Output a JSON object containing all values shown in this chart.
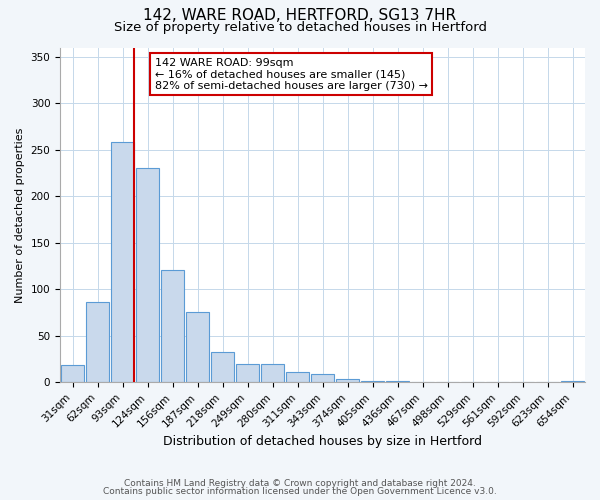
{
  "title1": "142, WARE ROAD, HERTFORD, SG13 7HR",
  "title2": "Size of property relative to detached houses in Hertford",
  "xlabel": "Distribution of detached houses by size in Hertford",
  "ylabel": "Number of detached properties",
  "categories": [
    "31sqm",
    "62sqm",
    "93sqm",
    "124sqm",
    "156sqm",
    "187sqm",
    "218sqm",
    "249sqm",
    "280sqm",
    "311sqm",
    "343sqm",
    "374sqm",
    "405sqm",
    "436sqm",
    "467sqm",
    "498sqm",
    "529sqm",
    "561sqm",
    "592sqm",
    "623sqm",
    "654sqm"
  ],
  "values": [
    19,
    86,
    258,
    230,
    121,
    76,
    33,
    20,
    20,
    11,
    9,
    4,
    1,
    1,
    0,
    0,
    0,
    0,
    0,
    0,
    2
  ],
  "bar_color": "#c9d9ec",
  "bar_edge_color": "#5b9bd5",
  "vline_color": "#cc0000",
  "vline_pos": 2.5,
  "annotation_title": "142 WARE ROAD: 99sqm",
  "annotation_line1": "← 16% of detached houses are smaller (145)",
  "annotation_line2": "82% of semi-detached houses are larger (730) →",
  "annotation_box_color": "#ffffff",
  "annotation_box_edge": "#cc0000",
  "ylim": [
    0,
    360
  ],
  "yticks": [
    0,
    50,
    100,
    150,
    200,
    250,
    300,
    350
  ],
  "footer1": "Contains HM Land Registry data © Crown copyright and database right 2024.",
  "footer2": "Contains public sector information licensed under the Open Government Licence v3.0.",
  "bg_color": "#f2f6fa",
  "plot_bg_color": "#ffffff",
  "title1_fontsize": 11,
  "title2_fontsize": 9.5,
  "xlabel_fontsize": 9,
  "ylabel_fontsize": 8,
  "tick_fontsize": 7.5,
  "footer_fontsize": 6.5,
  "ann_fontsize": 8
}
